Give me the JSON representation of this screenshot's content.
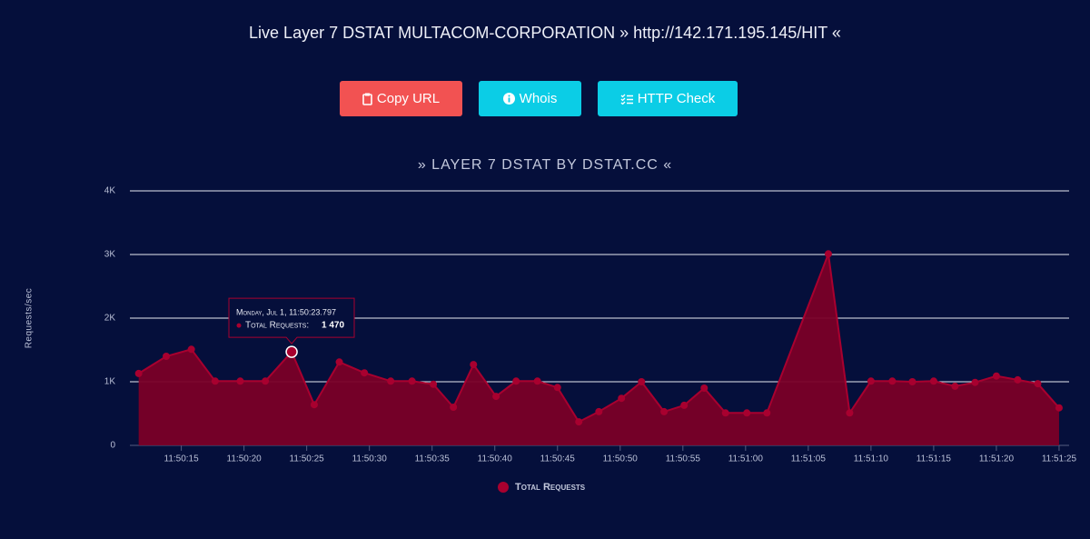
{
  "page_title": "Live Layer 7 DSTAT MULTACOM-CORPORATION » http://142.171.195.145/HIT «",
  "buttons": [
    {
      "label": "Copy URL"
    },
    {
      "label": "Whois"
    },
    {
      "label": "HTTP Check"
    }
  ],
  "chart_data": {
    "type": "area",
    "title": "» LAYER 7 DSTAT BY DSTAT.CC «",
    "y_label": "Requests/sec",
    "x": [
      "11:50:11.6",
      "11:50:13.8",
      "11:50:15.8",
      "11:50:17.7",
      "11:50:19.7",
      "11:50:21.7",
      "11:50:23.8",
      "11:50:25.6",
      "11:50:27.6",
      "11:50:29.6",
      "11:50:31.7",
      "11:50:33.4",
      "11:50:35.1",
      "11:50:36.7",
      "11:50:38.3",
      "11:50:40.1",
      "11:50:41.7",
      "11:50:43.4",
      "11:50:45.0",
      "11:50:46.7",
      "11:50:48.3",
      "11:50:50.1",
      "11:50:51.7",
      "11:50:53.5",
      "11:50:55.1",
      "11:50:56.7",
      "11:50:58.4",
      "11:51:00.1",
      "11:51:01.7",
      "11:51:06.6",
      "11:51:08.3",
      "11:51:10.0",
      "11:51:11.7",
      "11:51:13.3",
      "11:51:15.0",
      "11:51:16.7",
      "11:51:18.3",
      "11:51:20.0",
      "11:51:21.7",
      "11:51:23.3",
      "11:51:25.0"
    ],
    "series": [
      {
        "name": "Total Requests",
        "color": "#a8002f",
        "fill": "#7a0027",
        "values": [
          1130,
          1400,
          1510,
          1010,
          1010,
          1010,
          1470,
          640,
          1310,
          1140,
          1010,
          1010,
          960,
          600,
          1270,
          770,
          1010,
          1010,
          910,
          370,
          530,
          740,
          1000,
          530,
          630,
          900,
          510,
          510,
          510,
          3010,
          510,
          1010,
          1010,
          1000,
          1010,
          930,
          990,
          1090,
          1030,
          970,
          590
        ]
      }
    ],
    "xlim": [
      "11:50:10.9",
      "11:51:25.8"
    ],
    "xticks": [
      "11:50:15",
      "11:50:20",
      "11:50:25",
      "11:50:30",
      "11:50:35",
      "11:50:40",
      "11:50:45",
      "11:50:50",
      "11:50:55",
      "11:51:00",
      "11:51:05",
      "11:51:10",
      "11:51:15",
      "11:51:20",
      "11:51:25"
    ],
    "ylim": [
      0,
      4000
    ],
    "yticks": [
      0,
      {
        "value": 1000,
        "label": "1K"
      },
      {
        "value": 2000,
        "label": "2K"
      },
      {
        "value": 3000,
        "label": "3K"
      },
      {
        "value": 4000,
        "label": "4K"
      }
    ],
    "grid": true,
    "tooltip": {
      "title": "Monday, Jul 1, 11:50:23.797",
      "label": "Total Requests:",
      "value": 1470,
      "value_label": "1 470",
      "x": "11:50:23.8"
    }
  }
}
